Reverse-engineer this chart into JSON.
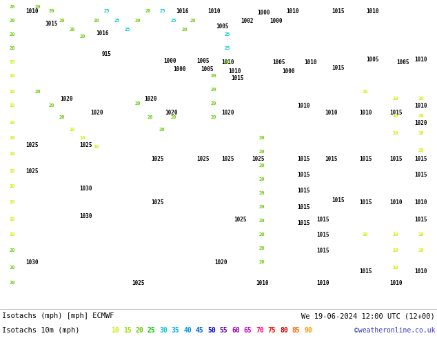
{
  "title_left": "Isotachs (mph) [mph] ECMWF",
  "title_right": "We 19-06-2024 12:00 UTC (12+00)",
  "legend_label": "Isotachs 10m (mph)",
  "copyright": "©weatheronline.co.uk",
  "legend_values": [
    10,
    15,
    20,
    25,
    30,
    35,
    40,
    45,
    50,
    55,
    60,
    65,
    70,
    75,
    80,
    85,
    90
  ],
  "legend_colors": [
    "#c8f000",
    "#96e600",
    "#64c800",
    "#00c800",
    "#00c8c8",
    "#00b4dc",
    "#0096dc",
    "#0064c8",
    "#0000dc",
    "#6400b4",
    "#9600b4",
    "#c800c8",
    "#ff0082",
    "#ff0000",
    "#c80000",
    "#ff6400",
    "#ff9600"
  ],
  "bg_color": "#ffffff",
  "map_bg_color": "#c8e6b4",
  "figwidth": 6.34,
  "figheight": 4.9,
  "dpi": 100
}
